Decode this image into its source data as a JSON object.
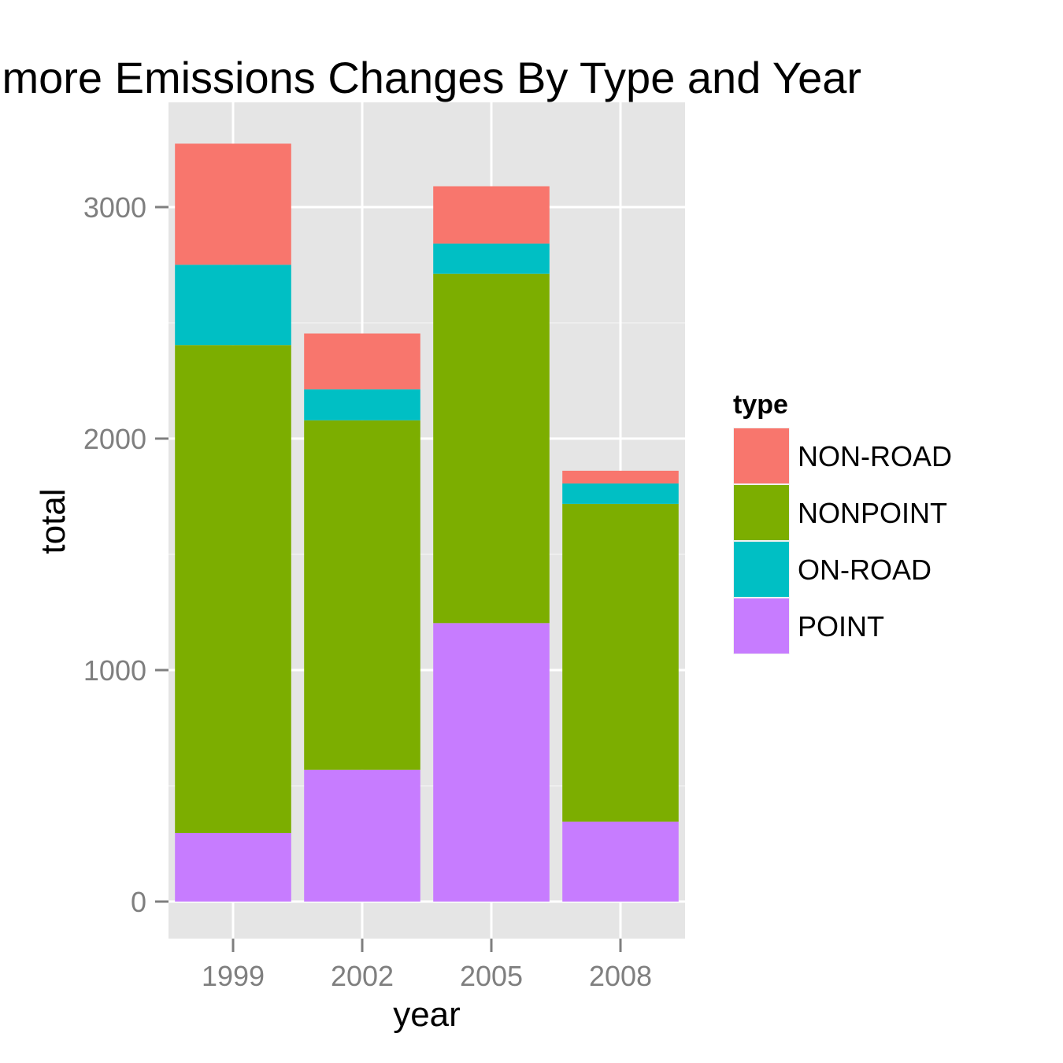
{
  "chart_data": {
    "type": "bar",
    "stacked": true,
    "title": "imore Emissions Changes By Type and Year",
    "xlabel": "year",
    "ylabel": "total",
    "categories": [
      "1999",
      "2002",
      "2005",
      "2008"
    ],
    "series": [
      {
        "name": "POINT",
        "color": "#C77CFF",
        "values": [
          296,
          569,
          1203,
          345
        ]
      },
      {
        "name": "NONPOINT",
        "color": "#7CAE00",
        "values": [
          2108,
          1510,
          1509,
          1373
        ]
      },
      {
        "name": "ON-ROAD",
        "color": "#00BFC4",
        "values": [
          347,
          134,
          130,
          88
        ]
      },
      {
        "name": "NON-ROAD",
        "color": "#F8766D",
        "values": [
          523,
          241,
          248,
          55
        ]
      }
    ],
    "ylim": [
      -160,
      3500
    ],
    "yticks": [
      0,
      1000,
      2000,
      3000
    ],
    "ytick_labels": [
      "0",
      "1000",
      "2000",
      "3000"
    ],
    "grid": true,
    "legend": {
      "title": "type",
      "position": "right",
      "entries": [
        "NON-ROAD",
        "NONPOINT",
        "ON-ROAD",
        "POINT"
      ]
    },
    "panel_background": "#E5E5E5"
  }
}
